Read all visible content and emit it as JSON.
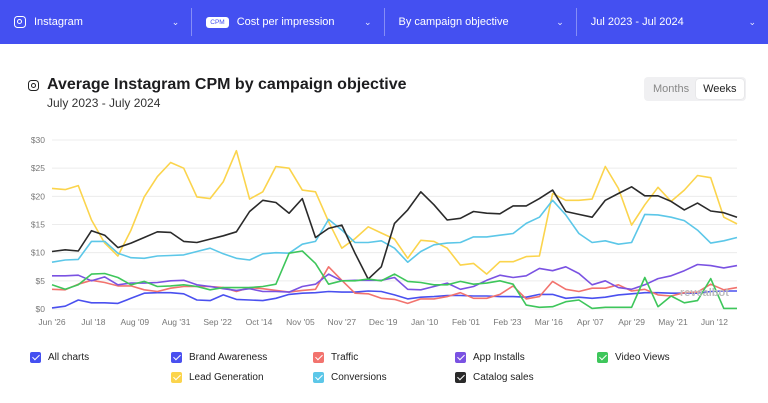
{
  "topbar": {
    "platform": "Instagram",
    "metric_badge": "CPM",
    "metric": "Cost per impression",
    "breakdown": "By campaign objective",
    "range": "Jul 2023 - Jul 2024"
  },
  "header": {
    "title": "Average Instagram CPM by campaign objective",
    "subtitle": "July 2023 - July 2024"
  },
  "toggle": {
    "months": "Months",
    "weeks": "Weeks",
    "selected": "Weeks"
  },
  "watermark": "revealbot",
  "legend": {
    "all": "All charts"
  },
  "colors": {
    "accent": "#4450f1"
  },
  "chart_data": {
    "type": "line",
    "title": "Average Instagram CPM by campaign objective",
    "subtitle": "July 2023 - July 2024",
    "ylim": [
      0,
      30
    ],
    "yticks": [
      "$0",
      "$5",
      "$10",
      "$15",
      "$20",
      "$25",
      "$30"
    ],
    "ytick_values": [
      0,
      5,
      10,
      15,
      20,
      25,
      30
    ],
    "grid": true,
    "legend_placement": "bottom",
    "x": [
      "2023-06-26",
      "2023-07-03",
      "2023-07-10",
      "2023-07-17",
      "2023-07-24",
      "2023-07-31",
      "2023-08-07",
      "2023-08-14",
      "2023-08-21",
      "2023-08-28",
      "2023-09-04",
      "2023-09-11",
      "2023-09-18",
      "2023-09-25",
      "2023-10-02",
      "2023-10-09",
      "2023-10-16",
      "2023-10-23",
      "2023-10-30",
      "2023-11-06",
      "2023-11-13",
      "2023-11-20",
      "2023-11-27",
      "2023-12-04",
      "2023-12-11",
      "2023-12-18",
      "2023-12-25",
      "2024-01-01",
      "2024-01-08",
      "2024-01-15",
      "2024-01-22",
      "2024-01-29",
      "2024-02-05",
      "2024-02-12",
      "2024-02-19",
      "2024-02-26",
      "2024-03-04",
      "2024-03-11",
      "2024-03-18",
      "2024-03-25",
      "2024-04-01",
      "2024-04-08",
      "2024-04-15",
      "2024-04-22",
      "2024-04-29",
      "2024-05-06",
      "2024-05-13",
      "2024-05-20",
      "2024-05-27",
      "2024-06-03",
      "2024-06-10",
      "2024-06-17",
      "2024-06-24"
    ],
    "xticks": [
      {
        "label": "Jun '26",
        "date": "2023-06-26"
      },
      {
        "label": "Jul '18",
        "date": "2023-07-18"
      },
      {
        "label": "Aug '09",
        "date": "2023-08-09"
      },
      {
        "label": "Aug '31",
        "date": "2023-08-31"
      },
      {
        "label": "Sep '22",
        "date": "2023-09-22"
      },
      {
        "label": "Oct '14",
        "date": "2023-10-14"
      },
      {
        "label": "Nov '05",
        "date": "2023-11-05"
      },
      {
        "label": "Nov '27",
        "date": "2023-11-27"
      },
      {
        "label": "Dec '19",
        "date": "2023-12-19"
      },
      {
        "label": "Jan '10",
        "date": "2024-01-10"
      },
      {
        "label": "Feb '01",
        "date": "2024-02-01"
      },
      {
        "label": "Feb '23",
        "date": "2024-02-23"
      },
      {
        "label": "Mar '16",
        "date": "2024-03-16"
      },
      {
        "label": "Apr '07",
        "date": "2024-04-07"
      },
      {
        "label": "Apr '29",
        "date": "2024-04-29"
      },
      {
        "label": "May '21",
        "date": "2024-05-21"
      },
      {
        "label": "Jun '12",
        "date": "2024-06-12"
      }
    ],
    "series": [
      {
        "name": "Brand Awareness",
        "color": "#4a50ef",
        "values": [
          0.2,
          0.5,
          1.6,
          1.1,
          1.1,
          1,
          1.9,
          2.8,
          2.9,
          2.9,
          2.7,
          1.6,
          1.5,
          2.5,
          1.7,
          1.6,
          1.5,
          1.9,
          2.6,
          2.8,
          2.9,
          3.1,
          3,
          3,
          3.2,
          3.1,
          2.5,
          1.8,
          2.1,
          2.2,
          2.4,
          2.4,
          2.3,
          2.3,
          2.2,
          2.2,
          2.1,
          2.6,
          2.6,
          1.9,
          2.1,
          1.9,
          2.1,
          2.5,
          2.7,
          2.9,
          2.9,
          2.8,
          2.8,
          2.8,
          3.1,
          3.2,
          3.2
        ]
      },
      {
        "name": "Lead Generation",
        "color": "#fbd44c",
        "values": [
          21.4,
          21.2,
          21.9,
          15.8,
          11.7,
          9.4,
          14,
          19.9,
          23.5,
          26,
          25,
          19.9,
          19.6,
          22.6,
          28.1,
          19.5,
          20.8,
          25.3,
          25,
          21.1,
          20.8,
          15.5,
          10.8,
          12.5,
          14.6,
          13.5,
          12.4,
          9,
          12.2,
          12,
          10.8,
          7.8,
          8.1,
          6.2,
          8.4,
          8.4,
          9.3,
          9.4,
          20.5,
          19.3,
          19.3,
          19.5,
          25.3,
          21.4,
          14.9,
          18.5,
          21.6,
          19.1,
          21.1,
          23.7,
          23.3,
          16.3,
          15.1
        ]
      },
      {
        "name": "Traffic",
        "color": "#f2736e",
        "values": [
          3.5,
          3.4,
          4.4,
          5.1,
          4.7,
          4.1,
          4.1,
          3.4,
          3.1,
          3.7,
          4,
          4,
          4,
          3.8,
          3.1,
          3.8,
          3.6,
          3.3,
          3,
          3.3,
          3.5,
          7.5,
          5.1,
          2.8,
          2.7,
          1.9,
          1.7,
          1,
          1.8,
          1.8,
          2.2,
          2.9,
          1.9,
          1.9,
          2.6,
          4.1,
          1.8,
          2.2,
          4.9,
          3.5,
          3.1,
          3.7,
          3.7,
          4.3,
          3.2,
          3.5,
          2.5,
          2.3,
          2.9,
          3,
          4.4,
          3.4,
          3.8
        ]
      },
      {
        "name": "Conversions",
        "color": "#5cc7e8",
        "values": [
          8.3,
          8.7,
          8.8,
          12,
          12,
          9.9,
          9.1,
          9,
          9.4,
          9.5,
          9.6,
          10.2,
          10.8,
          9.8,
          9,
          8.7,
          9.8,
          10,
          9.9,
          11.5,
          12,
          15.9,
          14,
          11.8,
          11.8,
          12.1,
          10.8,
          8.3,
          10.2,
          11.4,
          11.7,
          11.8,
          12.8,
          12.8,
          13.1,
          13.4,
          15.2,
          16.3,
          19.3,
          16.7,
          13.4,
          11.8,
          12.1,
          11.5,
          11.8,
          16.8,
          16.7,
          16.3,
          15.7,
          14,
          11.7,
          12.1,
          12.7
        ]
      },
      {
        "name": "App Installs",
        "color": "#7a52e2",
        "values": [
          5.9,
          5.9,
          6,
          5,
          5.7,
          4.3,
          4.6,
          4.6,
          4.7,
          5,
          5.1,
          4.3,
          4,
          3.6,
          3.3,
          3.6,
          3.1,
          3.1,
          3,
          4,
          4.4,
          6.2,
          5,
          5.1,
          5.1,
          5.1,
          5.6,
          3.5,
          3.4,
          4,
          4.6,
          3.5,
          4,
          5.1,
          6,
          5.6,
          5.9,
          7.2,
          6.8,
          7.5,
          6.3,
          4.3,
          5,
          3.8,
          3.5,
          4.3,
          5.4,
          5.9,
          6.8,
          7.9,
          7.7,
          7.3,
          7.7
        ]
      },
      {
        "name": "Catalog sales",
        "color": "#2a2a2a",
        "values": [
          10.2,
          10.5,
          10.3,
          13.9,
          13.1,
          10.9,
          11.7,
          12.7,
          13.7,
          13.6,
          12,
          11.8,
          12.4,
          13,
          13.7,
          17.3,
          19.3,
          18.9,
          17,
          19.6,
          12.7,
          14.3,
          14.9,
          9.9,
          5.3,
          7.5,
          15.2,
          17.6,
          20.8,
          18.5,
          15.8,
          16.1,
          17.3,
          17,
          16.9,
          18.3,
          18.3,
          19.6,
          21.1,
          17.3,
          16.8,
          16.3,
          19.3,
          20.5,
          21.7,
          20.1,
          20.1,
          19.1,
          17.6,
          18.8,
          17.4,
          17.1,
          16.3
        ]
      },
      {
        "name": "Video Views",
        "color": "#3ec65b",
        "values": [
          4.3,
          3.5,
          4.3,
          6.2,
          6.3,
          5.6,
          4.3,
          4.9,
          4,
          4.1,
          4.3,
          4,
          3.4,
          3.8,
          3.8,
          3.8,
          4,
          4.4,
          9.9,
          10.3,
          8.1,
          4.4,
          5,
          5,
          5.3,
          5,
          6.2,
          4.9,
          4.7,
          4.3,
          4.3,
          4.9,
          4.4,
          4.6,
          5,
          4.4,
          0.7,
          0.3,
          0.4,
          1.3,
          1.6,
          0.1,
          0.3,
          0.3,
          0.3,
          5.6,
          0.4,
          2.3,
          1.1,
          1.5,
          5.4,
          0.1,
          0.1
        ]
      }
    ],
    "legend_layout": [
      [
        0,
        2,
        4,
        6
      ],
      [
        1,
        3,
        5
      ]
    ]
  }
}
